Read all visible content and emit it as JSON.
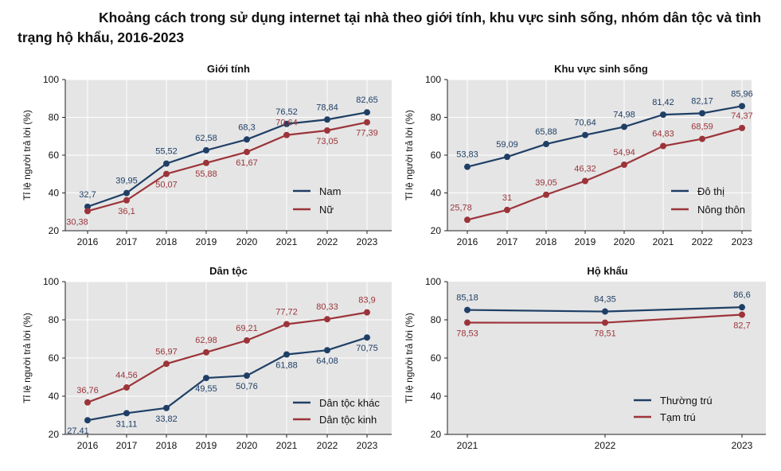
{
  "title": "Khoảng cách trong sử dụng internet tại nhà theo giới tính, khu vực sinh sống, nhóm dân tộc và tình trạng hộ khẩu, 2016-2023",
  "colors": {
    "series1": "#1f3f66",
    "series2": "#9c343a",
    "panel_bg": "#e5e5e5",
    "grid": "#ffffff"
  },
  "chart_data": [
    {
      "type": "line",
      "title": "Giới tính",
      "ylabel": "Tỉ lệ người trả lời (%)",
      "xlabel": "",
      "categories": [
        "2016",
        "2017",
        "2018",
        "2019",
        "2020",
        "2021",
        "2022",
        "2023"
      ],
      "ylim": [
        20,
        100
      ],
      "yticks": [
        20,
        40,
        60,
        80,
        100
      ],
      "grid": true,
      "legend": "right",
      "series": [
        {
          "name": "Nam",
          "color": "#1f3f66",
          "values": [
            32.7,
            39.95,
            55.52,
            62.58,
            68.3,
            76.52,
            78.84,
            82.65
          ],
          "labels": [
            "32,7",
            "39,95",
            "55,52",
            "62,58",
            "68,3",
            "76,52",
            "78,84",
            "82,65"
          ]
        },
        {
          "name": "Nữ",
          "color": "#9c343a",
          "values": [
            30.38,
            36.1,
            50.07,
            55.88,
            61.67,
            70.64,
            73.05,
            77.39
          ],
          "labels": [
            "30,38",
            "36,1",
            "50,07",
            "55,88",
            "61,67",
            "70,64",
            "73,05",
            "77,39"
          ]
        }
      ]
    },
    {
      "type": "line",
      "title": "Khu vực sinh sống",
      "ylabel": "Tỉ lệ người trả lời (%)",
      "xlabel": "",
      "categories": [
        "2016",
        "2017",
        "2018",
        "2019",
        "2020",
        "2021",
        "2022",
        "2023"
      ],
      "ylim": [
        20,
        100
      ],
      "yticks": [
        20,
        40,
        60,
        80,
        100
      ],
      "grid": true,
      "legend": "right",
      "series": [
        {
          "name": "Đô thị",
          "color": "#1f3f66",
          "values": [
            53.83,
            59.09,
            65.88,
            70.64,
            74.98,
            81.42,
            82.17,
            85.96
          ],
          "labels": [
            "53,83",
            "59,09",
            "65,88",
            "70,64",
            "74,98",
            "81,42",
            "82,17",
            "85,96"
          ]
        },
        {
          "name": "Nông thôn",
          "color": "#9c343a",
          "values": [
            25.78,
            31,
            39.05,
            46.32,
            54.94,
            64.83,
            68.59,
            74.37
          ],
          "labels": [
            "25,78",
            "31",
            "39,05",
            "46,32",
            "54,94",
            "64,83",
            "68,59",
            "74,37"
          ]
        }
      ]
    },
    {
      "type": "line",
      "title": "Dân tộc",
      "ylabel": "Tỉ lệ người trả lời (%)",
      "xlabel": "",
      "categories": [
        "2016",
        "2017",
        "2018",
        "2019",
        "2020",
        "2021",
        "2022",
        "2023"
      ],
      "ylim": [
        20,
        100
      ],
      "yticks": [
        20,
        40,
        60,
        80,
        100
      ],
      "grid": true,
      "legend": "bottom-right",
      "series": [
        {
          "name": "Dân tộc khác",
          "color": "#1f3f66",
          "values": [
            27.41,
            31.11,
            33.82,
            49.55,
            50.76,
            61.88,
            64.08,
            70.75
          ],
          "labels": [
            "27,41",
            "31,11",
            "33,82",
            "49,55",
            "50,76",
            "61,88",
            "64,08",
            "70,75"
          ]
        },
        {
          "name": "Dân tộc kinh",
          "color": "#9c343a",
          "values": [
            36.76,
            44.56,
            56.97,
            62.98,
            69.21,
            77.72,
            80.33,
            83.9
          ],
          "labels": [
            "36,76",
            "44,56",
            "56,97",
            "62,98",
            "69,21",
            "77,72",
            "80,33",
            "83,9"
          ]
        }
      ]
    },
    {
      "type": "line",
      "title": "Hộ khẩu",
      "ylabel": "Tỉ lệ người trả lời (%)",
      "xlabel": "",
      "categories": [
        "2021",
        "2022",
        "2023"
      ],
      "ylim": [
        20,
        100
      ],
      "yticks": [
        20,
        40,
        60,
        80,
        100
      ],
      "grid": false,
      "legend": "bottom-right",
      "series": [
        {
          "name": "Thường trú",
          "color": "#1f3f66",
          "values": [
            85.18,
            84.35,
            86.6
          ],
          "labels": [
            "85,18",
            "84,35",
            "86,6"
          ]
        },
        {
          "name": "Tạm trú",
          "color": "#9c343a",
          "values": [
            78.53,
            78.51,
            82.7
          ],
          "labels": [
            "78,53",
            "78,51",
            "82,7"
          ]
        }
      ]
    }
  ]
}
